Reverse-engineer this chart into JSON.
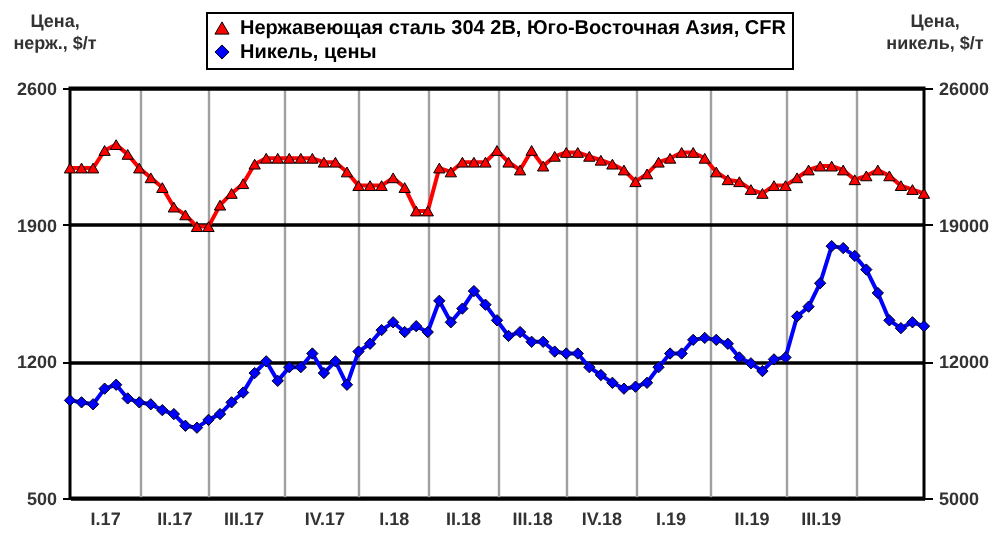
{
  "chart_data": {
    "type": "line",
    "ylabel": "Цена, нерж., $/т",
    "y2label": "Цена, никель, $/т",
    "categories": [
      null,
      null,
      null,
      "I.17",
      null,
      null,
      null,
      null,
      null,
      "II.17",
      null,
      null,
      null,
      null,
      null,
      "III.17",
      null,
      null,
      null,
      null,
      null,
      null,
      "IV.17",
      null,
      null,
      null,
      null,
      null,
      "I.18",
      null,
      null,
      null,
      null,
      null,
      "II.18",
      null,
      null,
      null,
      null,
      null,
      "III.18",
      null,
      null,
      null,
      null,
      null,
      "IV.18",
      null,
      null,
      null,
      null,
      null,
      "I.19",
      null,
      null,
      null,
      null,
      null,
      null,
      "II.19",
      null,
      null,
      null,
      null,
      null,
      "III.19",
      null,
      null,
      null,
      null,
      null,
      null,
      null,
      null,
      null
    ],
    "series": [
      {
        "name": "Нержавеющая сталь 304 2B, Юго-Восточная Азия, CFR",
        "color": "#ff0000",
        "marker": "triangle",
        "values": [
          2190,
          2190,
          2190,
          2280,
          2310,
          2260,
          2190,
          2140,
          2090,
          1990,
          1950,
          1890,
          1890,
          2000,
          2060,
          2110,
          2210,
          2240,
          2240,
          2240,
          2240,
          2240,
          2220,
          2220,
          2170,
          2100,
          2100,
          2100,
          2140,
          2090,
          1970,
          1970,
          2190,
          2170,
          2220,
          2220,
          2220,
          2280,
          2220,
          2180,
          2280,
          2200,
          2250,
          2270,
          2270,
          2250,
          2230,
          2210,
          2180,
          2120,
          2160,
          2220,
          2240,
          2270,
          2270,
          2240,
          2170,
          2130,
          2120,
          2080,
          2060,
          2100,
          2100,
          2140,
          2180,
          2200,
          2200,
          2180,
          2130,
          2150,
          2180,
          2150,
          2100,
          2080,
          2060
        ]
      },
      {
        "name": "Никель, цены",
        "color": "#0000ff",
        "marker": "diamond",
        "axis": "y2",
        "values": [
          10000,
          9900,
          9800,
          10600,
          10800,
          10100,
          9900,
          9800,
          9500,
          9300,
          8700,
          8600,
          9000,
          9300,
          9900,
          10400,
          11400,
          12000,
          11000,
          11700,
          11700,
          12400,
          11400,
          12000,
          10800,
          12500,
          12900,
          13600,
          14000,
          13500,
          13800,
          13500,
          15100,
          14000,
          14700,
          15600,
          14900,
          14100,
          13300,
          13500,
          13000,
          13000,
          12500,
          12400,
          12400,
          11700,
          11300,
          10900,
          10600,
          10700,
          10900,
          11700,
          12400,
          12400,
          13100,
          13200,
          13100,
          12900,
          12200,
          11900,
          11500,
          12100,
          12200,
          14300,
          14800,
          16000,
          17900,
          17800,
          17400,
          16700,
          15500,
          14100,
          13700,
          14000,
          13800
        ]
      }
    ],
    "ylim": [
      500,
      2600
    ],
    "yticks": [
      500,
      1200,
      1900,
      2600
    ],
    "y2lim": [
      5000,
      26000
    ],
    "y2ticks": [
      5000,
      12000,
      19000,
      26000
    ],
    "grid": true,
    "legend": "top"
  }
}
